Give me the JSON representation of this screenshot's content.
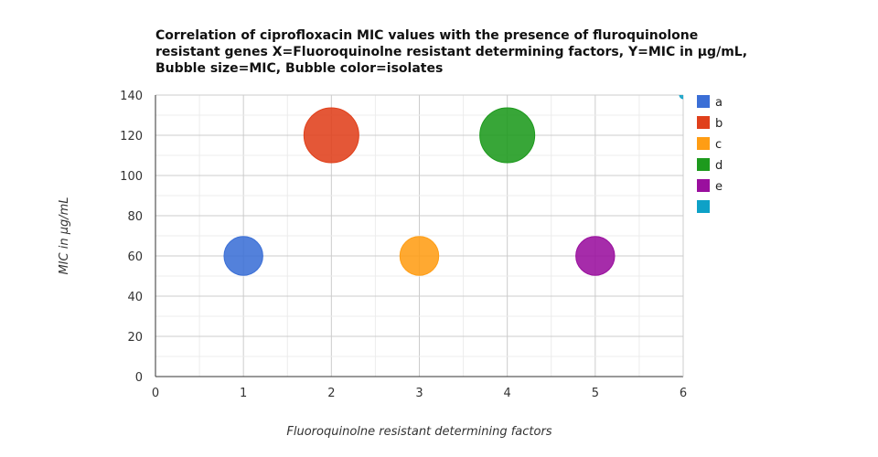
{
  "chart_data": {
    "type": "scatter",
    "title_lines": [
      "Correlation of ciprofloxacin MIC values with the presence of fluroquinolone",
      "resistant genes X=Fluoroquinolne resistant determining factors, Y=MIC in µg/mL,",
      "Bubble size=MIC, Bubble color=isolates"
    ],
    "xlabel": "Fluoroquinolne resistant determining factors",
    "ylabel": "MIC in µg/mL",
    "xlim": [
      0,
      6
    ],
    "ylim": [
      0,
      140
    ],
    "x_ticks": [
      0,
      1,
      2,
      3,
      4,
      5,
      6
    ],
    "y_ticks": [
      0,
      20,
      40,
      60,
      80,
      100,
      120,
      140
    ],
    "grid": true,
    "legend_position": "right",
    "series": [
      {
        "name": "a",
        "color": "#3b6fd6",
        "points": [
          {
            "x": 1,
            "y": 60,
            "size": 60
          }
        ]
      },
      {
        "name": "b",
        "color": "#e0401b",
        "points": [
          {
            "x": 2,
            "y": 120,
            "size": 120
          }
        ]
      },
      {
        "name": "c",
        "color": "#ff9d14",
        "points": [
          {
            "x": 3,
            "y": 60,
            "size": 60
          }
        ]
      },
      {
        "name": "d",
        "color": "#1d9a1d",
        "points": [
          {
            "x": 4,
            "y": 120,
            "size": 120
          }
        ]
      },
      {
        "name": "e",
        "color": "#9a0f9e",
        "points": [
          {
            "x": 5,
            "y": 60,
            "size": 60
          }
        ]
      },
      {
        "name": "",
        "color": "#0ea1c7",
        "points": [
          {
            "x": 6,
            "y": 140,
            "size": 0
          }
        ]
      }
    ]
  }
}
